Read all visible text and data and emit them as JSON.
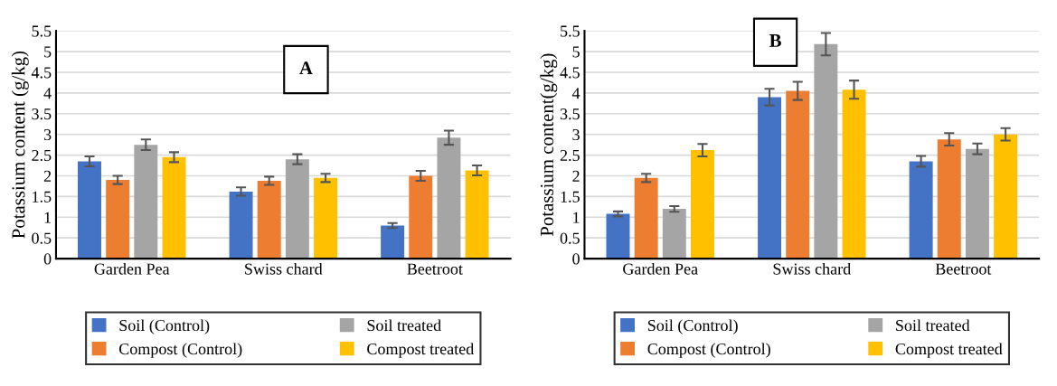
{
  "chart_data": [
    {
      "type": "bar",
      "title": "A",
      "ylabel": "Potassium content (g/kg)",
      "categories": [
        "Garden Pea",
        "Swiss chard",
        "Beetroot"
      ],
      "series": [
        {
          "name": "Soil (Control)",
          "color": "#4472c4",
          "values": [
            2.35,
            1.62,
            0.8
          ],
          "errors": [
            0.12,
            0.1,
            0.06
          ]
        },
        {
          "name": "Compost (Control)",
          "color": "#ed7d31",
          "values": [
            1.9,
            1.88,
            2.0
          ],
          "errors": [
            0.1,
            0.1,
            0.12
          ]
        },
        {
          "name": "Soil treated",
          "color": "#a5a5a5",
          "values": [
            2.75,
            2.4,
            2.92
          ],
          "errors": [
            0.13,
            0.12,
            0.17
          ]
        },
        {
          "name": "Compost treated",
          "color": "#ffc000",
          "values": [
            2.45,
            1.95,
            2.13
          ],
          "errors": [
            0.12,
            0.1,
            0.12
          ]
        }
      ],
      "ylim": [
        0,
        5.5
      ],
      "yticks": [
        0,
        0.5,
        1,
        1.5,
        2,
        2.5,
        3,
        3.5,
        4,
        4.5,
        5,
        5.5
      ],
      "grid": "y",
      "legend": "bottom"
    },
    {
      "type": "bar",
      "title": "B",
      "ylabel": "Potassium content(g/kg)",
      "categories": [
        "Garden Pea",
        "Swiss chard",
        "Beetroot"
      ],
      "series": [
        {
          "name": "Soil (Control)",
          "color": "#4472c4",
          "values": [
            1.08,
            3.9,
            2.35
          ],
          "errors": [
            0.06,
            0.2,
            0.13
          ]
        },
        {
          "name": "Compost (Control)",
          "color": "#ed7d31",
          "values": [
            1.95,
            4.05,
            2.88
          ],
          "errors": [
            0.1,
            0.22,
            0.15
          ]
        },
        {
          "name": "Soil treated",
          "color": "#a5a5a5",
          "values": [
            1.2,
            5.18,
            2.65
          ],
          "errors": [
            0.07,
            0.27,
            0.13
          ]
        },
        {
          "name": "Compost treated",
          "color": "#ffc000",
          "values": [
            2.62,
            4.08,
            3.0
          ],
          "errors": [
            0.15,
            0.22,
            0.15
          ]
        }
      ],
      "ylim": [
        0,
        5.5
      ],
      "yticks": [
        0,
        0.5,
        1,
        1.5,
        2,
        2.5,
        3,
        3.5,
        4,
        4.5,
        5,
        5.5
      ],
      "grid": "y",
      "legend": "bottom"
    }
  ]
}
